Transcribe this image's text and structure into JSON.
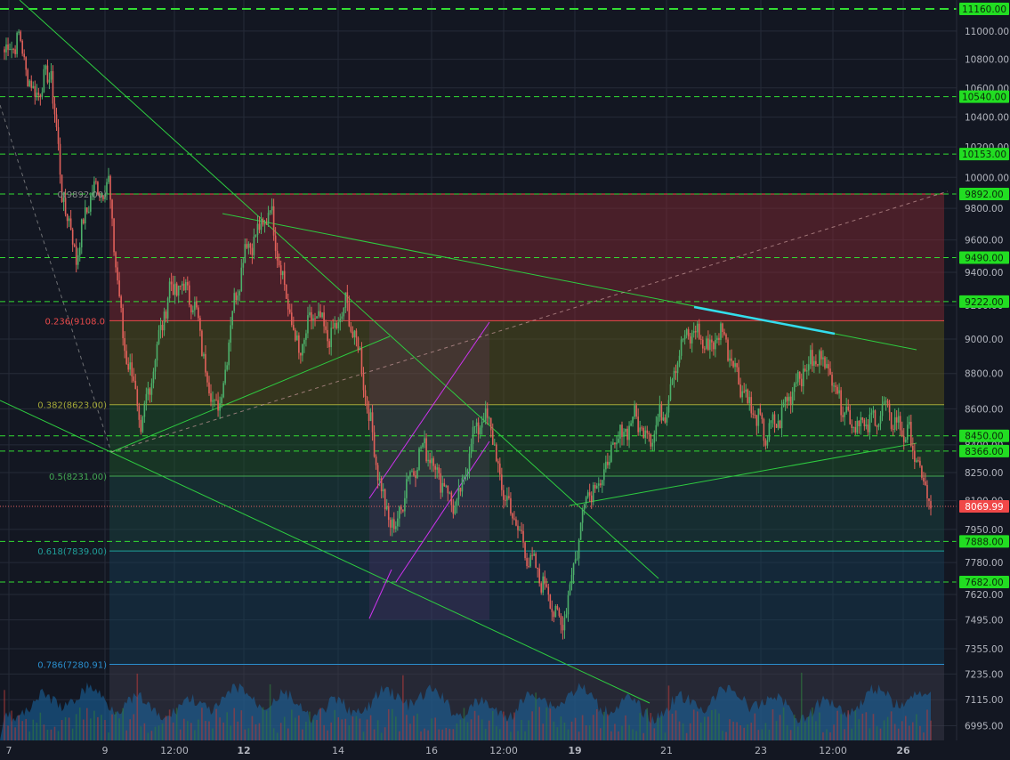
{
  "colors": {
    "background": "#131722",
    "grid": "#262b38",
    "up": "#4caf6a",
    "down": "#e0605a",
    "level_line": "#33dd33",
    "level_label_bg": "#22dd22",
    "current_price_bg": "#f04848",
    "trendline": "#2ecc40",
    "channel": "#cc33ee",
    "resistance_segment": "#33ddee",
    "fib_gray": "#8a8a8a",
    "fib_red": "#e84a4a",
    "fib_olive": "#a4a838",
    "fib_green": "#43a853",
    "fib_teal": "#1f9f9a",
    "fib_blue": "#2a8fcf",
    "volume": "#1a6aa8"
  },
  "chart_data": {
    "type": "candlestick",
    "y_axis": {
      "scale": "log",
      "min": 6950,
      "max": 11200,
      "tick_labels": [
        "11000.00",
        "10800.00",
        "10600.00",
        "10400.00",
        "10200.00",
        "10000.00",
        "9800.00",
        "9600.00",
        "9400.00",
        "9200.00",
        "9000.00",
        "8800.00",
        "8600.00",
        "8400.00",
        "8250.00",
        "8100.00",
        "7950.00",
        "7780.00",
        "7620.00",
        "7495.00",
        "7355.00",
        "7235.00",
        "7115.00",
        "6995.00"
      ]
    },
    "x_axis": {
      "labels": [
        {
          "text": "7",
          "bold": false
        },
        {
          "text": "9",
          "bold": false
        },
        {
          "text": "12:00",
          "bold": false
        },
        {
          "text": "12",
          "bold": true
        },
        {
          "text": "14",
          "bold": false
        },
        {
          "text": "16",
          "bold": false
        },
        {
          "text": "12:00",
          "bold": false
        },
        {
          "text": "19",
          "bold": true
        },
        {
          "text": "21",
          "bold": false
        },
        {
          "text": "23",
          "bold": false
        },
        {
          "text": "12:00",
          "bold": false
        },
        {
          "text": "26",
          "bold": true
        }
      ]
    },
    "horizontal_levels": [
      {
        "price": 11160,
        "label": "11160.00"
      },
      {
        "price": 10540,
        "label": "10540.00"
      },
      {
        "price": 10153,
        "label": "10153.00"
      },
      {
        "price": 9892,
        "label": "9892.00"
      },
      {
        "price": 9490,
        "label": "9490.00"
      },
      {
        "price": 9222,
        "label": "9222.00"
      },
      {
        "price": 8450,
        "label": "8450.00"
      },
      {
        "price": 8366,
        "label": "8366.00"
      },
      {
        "price": 7888,
        "label": "7888.00"
      },
      {
        "price": 7682,
        "label": "7682.00"
      }
    ],
    "current_price": {
      "price": 8069.99,
      "label": "8069.99"
    },
    "fibonacci": [
      {
        "ratio": "0",
        "price": 9892.0,
        "label": "0(9892.00)"
      },
      {
        "ratio": "0.236",
        "price": 9108.0,
        "label": "0.236(9108.0"
      },
      {
        "ratio": "0.382",
        "price": 8623.0,
        "label": "0.382(8623.00)"
      },
      {
        "ratio": "0.5",
        "price": 8231.0,
        "label": "0.5(8231.00)"
      },
      {
        "ratio": "0.618",
        "price": 7839.0,
        "label": "0.618(7839.00)"
      },
      {
        "ratio": "0.786",
        "price": 7280.91,
        "label": "0.786(7280.91)"
      }
    ],
    "price_path": [
      {
        "i": 0,
        "p": 10850
      },
      {
        "i": 8,
        "p": 10950
      },
      {
        "i": 16,
        "p": 10550
      },
      {
        "i": 26,
        "p": 10700
      },
      {
        "i": 32,
        "p": 9900
      },
      {
        "i": 40,
        "p": 9500
      },
      {
        "i": 48,
        "p": 9900
      },
      {
        "i": 58,
        "p": 9950
      },
      {
        "i": 66,
        "p": 9000
      },
      {
        "i": 72,
        "p": 8750
      },
      {
        "i": 76,
        "p": 8450
      },
      {
        "i": 80,
        "p": 8700
      },
      {
        "i": 86,
        "p": 9000
      },
      {
        "i": 92,
        "p": 9300
      },
      {
        "i": 102,
        "p": 9300
      },
      {
        "i": 108,
        "p": 9100
      },
      {
        "i": 114,
        "p": 8700
      },
      {
        "i": 120,
        "p": 8600
      },
      {
        "i": 126,
        "p": 9100
      },
      {
        "i": 134,
        "p": 9550
      },
      {
        "i": 142,
        "p": 9650
      },
      {
        "i": 148,
        "p": 9800
      },
      {
        "i": 156,
        "p": 9300
      },
      {
        "i": 164,
        "p": 8900
      },
      {
        "i": 172,
        "p": 9150
      },
      {
        "i": 182,
        "p": 9000
      },
      {
        "i": 190,
        "p": 9200
      },
      {
        "i": 198,
        "p": 8900
      },
      {
        "i": 204,
        "p": 8500
      },
      {
        "i": 212,
        "p": 8050
      },
      {
        "i": 218,
        "p": 7950
      },
      {
        "i": 224,
        "p": 8200
      },
      {
        "i": 234,
        "p": 8400
      },
      {
        "i": 244,
        "p": 8200
      },
      {
        "i": 252,
        "p": 8050
      },
      {
        "i": 262,
        "p": 8500
      },
      {
        "i": 270,
        "p": 8550
      },
      {
        "i": 276,
        "p": 8200
      },
      {
        "i": 284,
        "p": 8000
      },
      {
        "i": 292,
        "p": 7800
      },
      {
        "i": 302,
        "p": 7650
      },
      {
        "i": 310,
        "p": 7450
      },
      {
        "i": 318,
        "p": 7800
      },
      {
        "i": 324,
        "p": 8150
      },
      {
        "i": 332,
        "p": 8200
      },
      {
        "i": 340,
        "p": 8400
      },
      {
        "i": 350,
        "p": 8550
      },
      {
        "i": 360,
        "p": 8450
      },
      {
        "i": 368,
        "p": 8600
      },
      {
        "i": 376,
        "p": 8950
      },
      {
        "i": 384,
        "p": 9050
      },
      {
        "i": 392,
        "p": 8950
      },
      {
        "i": 400,
        "p": 9050
      },
      {
        "i": 408,
        "p": 8800
      },
      {
        "i": 416,
        "p": 8600
      },
      {
        "i": 424,
        "p": 8450
      },
      {
        "i": 432,
        "p": 8550
      },
      {
        "i": 440,
        "p": 8750
      },
      {
        "i": 448,
        "p": 8850
      },
      {
        "i": 456,
        "p": 8900
      },
      {
        "i": 462,
        "p": 8750
      },
      {
        "i": 470,
        "p": 8550
      },
      {
        "i": 480,
        "p": 8500
      },
      {
        "i": 490,
        "p": 8600
      },
      {
        "i": 498,
        "p": 8500
      },
      {
        "i": 504,
        "p": 8450
      },
      {
        "i": 510,
        "p": 8250
      },
      {
        "i": 516,
        "p": 8070
      }
    ],
    "candle_count": 517,
    "volume_note": "volume histogram along bottom of pane"
  }
}
